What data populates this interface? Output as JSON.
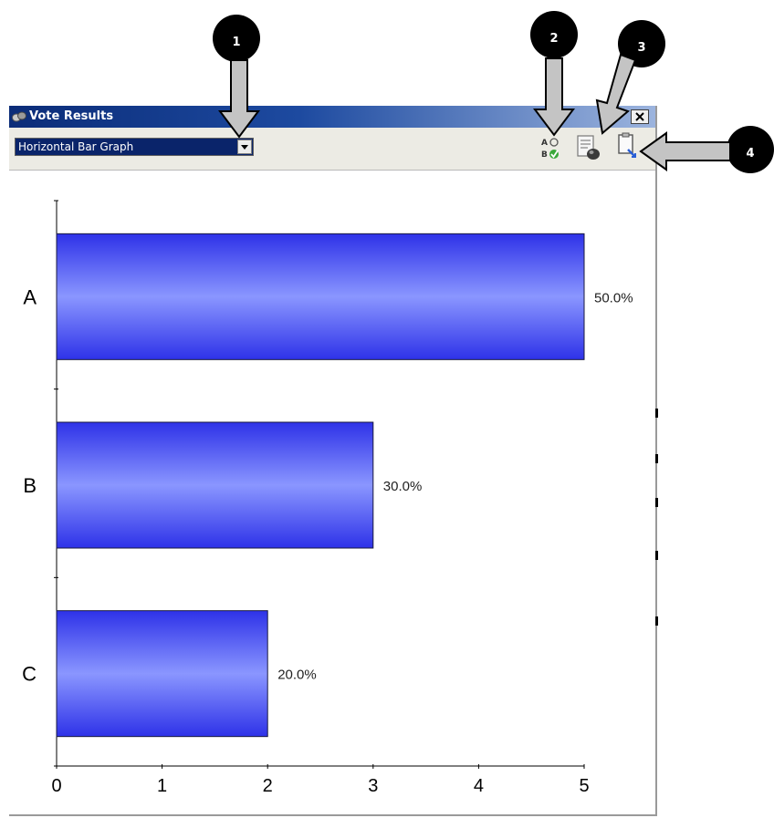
{
  "window": {
    "title": "Vote Results",
    "dropdown": {
      "selected": "Horizontal Bar Graph"
    }
  },
  "callouts": [
    "1",
    "2",
    "3",
    "4"
  ],
  "icons": {
    "app": "vote-results-icon",
    "answer": "answer-key-icon",
    "export": "export-document-icon",
    "copy": "copy-clipboard-icon",
    "close": "close-icon"
  },
  "colors": {
    "bar_dark": "#2e32e8",
    "bar_light": "#8a96ff",
    "title_start": "#0b2c78",
    "title_end": "#9cb4de"
  },
  "chart_data": {
    "type": "bar",
    "orientation": "horizontal",
    "categories": [
      "A",
      "B",
      "C"
    ],
    "values": [
      5,
      3,
      2
    ],
    "data_labels": [
      "50.0%",
      "30.0%",
      "20.0%"
    ],
    "x_ticks": [
      "0",
      "1",
      "2",
      "3",
      "4",
      "5"
    ],
    "xlim": [
      0,
      5
    ]
  }
}
